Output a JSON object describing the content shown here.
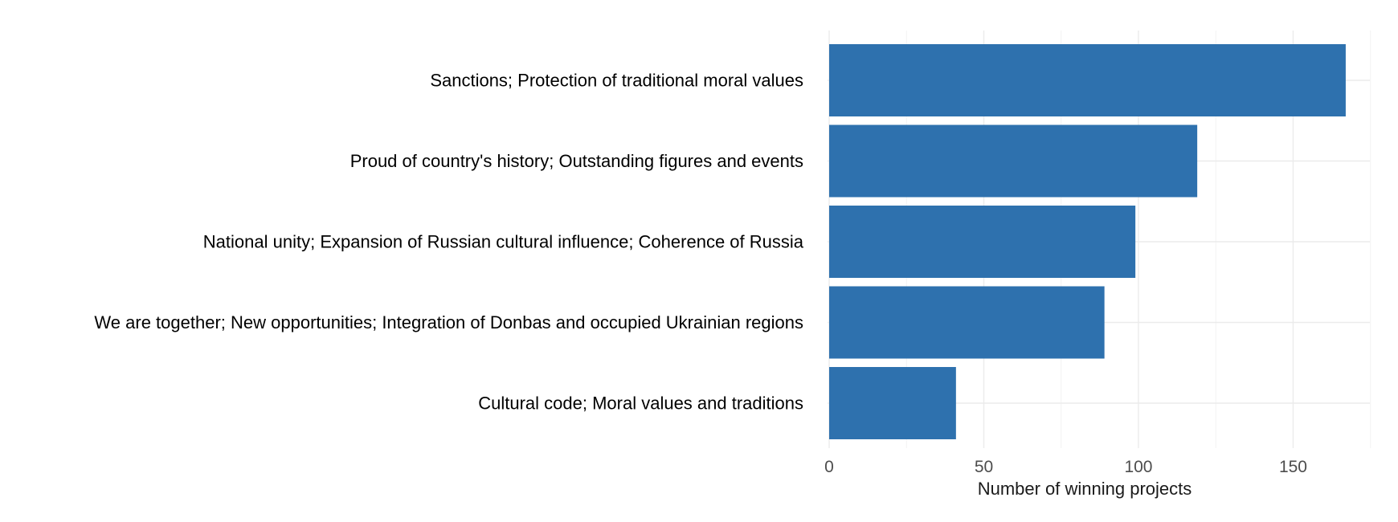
{
  "chart_data": {
    "type": "bar",
    "orientation": "horizontal",
    "categories": [
      "Sanctions; Protection of traditional moral values",
      "Proud of country's history; Outstanding figures and events",
      "National unity; Expansion of Russian cultural influence; Coherence of Russia",
      "We are together; New opportunities; Integration of Donbas and occupied Ukrainian regions",
      "Cultural code; Moral values and traditions"
    ],
    "values": [
      167,
      119,
      99,
      89,
      41
    ],
    "xlabel": "Number of winning projects",
    "ylabel": "",
    "title": "",
    "xlim": [
      0,
      175
    ],
    "xticks": [
      0,
      50,
      100,
      150
    ],
    "bar_color": "#2e71ae",
    "grid": true,
    "legend": "none"
  }
}
